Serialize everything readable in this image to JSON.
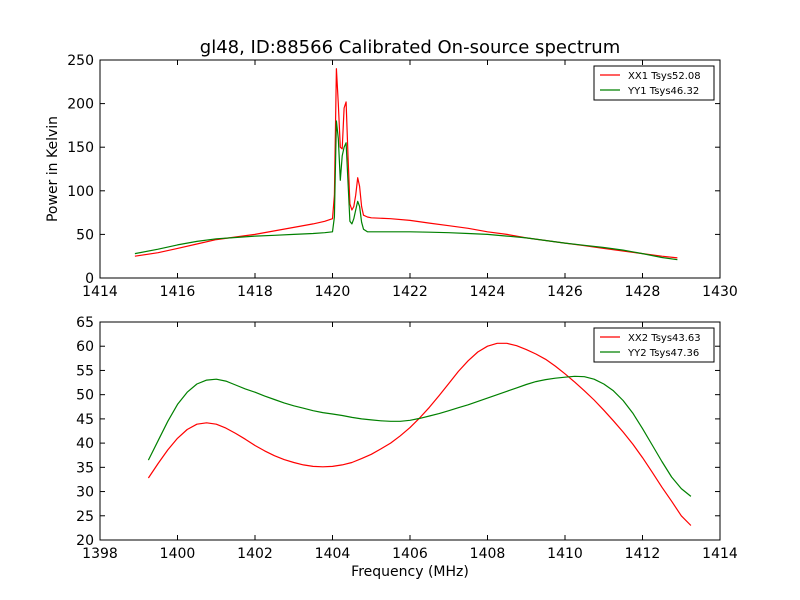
{
  "figure": {
    "title": "gl48, ID:88566 Calibrated On-source spectrum"
  },
  "chart_data": [
    {
      "type": "line",
      "title": "gl48, ID:88566 Calibrated On-source spectrum",
      "xlabel": "",
      "ylabel": "Power in Kelvin",
      "xlim": [
        1414,
        1430
      ],
      "ylim": [
        0,
        250
      ],
      "xticks": [
        1414,
        1416,
        1418,
        1420,
        1422,
        1424,
        1426,
        1428,
        1430
      ],
      "yticks": [
        0,
        50,
        100,
        150,
        200,
        250
      ],
      "grid": false,
      "legend_position": "top-right",
      "series": [
        {
          "name": "XX1 Tsys52.08",
          "color": "#ff0000",
          "x": [
            1414.9,
            1415.5,
            1416.0,
            1416.5,
            1417.0,
            1417.5,
            1418.0,
            1418.5,
            1419.0,
            1419.5,
            1419.8,
            1420.0,
            1420.05,
            1420.1,
            1420.15,
            1420.2,
            1420.25,
            1420.3,
            1420.35,
            1420.4,
            1420.45,
            1420.5,
            1420.55,
            1420.6,
            1420.65,
            1420.7,
            1420.75,
            1420.8,
            1420.9,
            1421.0,
            1421.5,
            1422.0,
            1422.5,
            1423.0,
            1423.5,
            1424.0,
            1424.5,
            1425.0,
            1425.5,
            1426.0,
            1426.5,
            1427.0,
            1427.5,
            1428.0,
            1428.5,
            1428.9
          ],
          "values": [
            25,
            29,
            34,
            39,
            44,
            47,
            50,
            54,
            58,
            62,
            65,
            68,
            95,
            240,
            200,
            150,
            148,
            195,
            202,
            140,
            85,
            78,
            82,
            95,
            115,
            105,
            82,
            72,
            70,
            69,
            68,
            66,
            63,
            60,
            57,
            53,
            50,
            46,
            43,
            40,
            37,
            34,
            31,
            28,
            25,
            23
          ]
        },
        {
          "name": "YY1 Tsys46.32",
          "color": "#008000",
          "x": [
            1414.9,
            1415.5,
            1416.0,
            1416.5,
            1417.0,
            1417.5,
            1418.0,
            1418.5,
            1419.0,
            1419.5,
            1419.8,
            1420.0,
            1420.05,
            1420.1,
            1420.15,
            1420.2,
            1420.25,
            1420.3,
            1420.35,
            1420.4,
            1420.45,
            1420.5,
            1420.55,
            1420.6,
            1420.65,
            1420.7,
            1420.75,
            1420.8,
            1420.9,
            1421.0,
            1421.5,
            1422.0,
            1422.5,
            1423.0,
            1423.5,
            1424.0,
            1424.5,
            1425.0,
            1425.5,
            1426.0,
            1426.5,
            1427.0,
            1427.5,
            1428.0,
            1428.5,
            1428.9
          ],
          "values": [
            28,
            33,
            38,
            42,
            45,
            46.5,
            48,
            49,
            50,
            51,
            52,
            53,
            70,
            180,
            160,
            112,
            140,
            150,
            155,
            110,
            65,
            62,
            68,
            78,
            88,
            82,
            64,
            56,
            53,
            53,
            53,
            53,
            52.5,
            52,
            51,
            50,
            48,
            46,
            43,
            40,
            37.5,
            35,
            32,
            28,
            23.5,
            21
          ]
        }
      ]
    },
    {
      "type": "line",
      "title": "",
      "xlabel": "Frequency (MHz)",
      "ylabel": "",
      "xlim": [
        1398,
        1414
      ],
      "ylim": [
        20,
        65
      ],
      "xticks": [
        1398,
        1400,
        1402,
        1404,
        1406,
        1408,
        1410,
        1412,
        1414
      ],
      "yticks": [
        20,
        25,
        30,
        35,
        40,
        45,
        50,
        55,
        60,
        65
      ],
      "grid": false,
      "legend_position": "top-right",
      "series": [
        {
          "name": "XX2 Tsys43.63",
          "color": "#ff0000",
          "x": [
            1399.25,
            1399.5,
            1399.75,
            1400.0,
            1400.25,
            1400.5,
            1400.75,
            1401.0,
            1401.25,
            1401.5,
            1401.75,
            1402.0,
            1402.25,
            1402.5,
            1402.75,
            1403.0,
            1403.25,
            1403.5,
            1403.75,
            1404.0,
            1404.25,
            1404.5,
            1404.75,
            1405.0,
            1405.25,
            1405.5,
            1405.75,
            1406.0,
            1406.25,
            1406.5,
            1406.75,
            1407.0,
            1407.25,
            1407.5,
            1407.75,
            1408.0,
            1408.25,
            1408.5,
            1408.75,
            1409.0,
            1409.25,
            1409.5,
            1409.75,
            1410.0,
            1410.25,
            1410.5,
            1410.75,
            1411.0,
            1411.25,
            1411.5,
            1411.75,
            1412.0,
            1412.25,
            1412.5,
            1412.75,
            1413.0,
            1413.25
          ],
          "values": [
            32.8,
            35.8,
            38.6,
            41.0,
            42.8,
            43.9,
            44.2,
            43.9,
            43.1,
            42.0,
            40.8,
            39.5,
            38.4,
            37.4,
            36.6,
            36.0,
            35.5,
            35.2,
            35.1,
            35.2,
            35.5,
            36.0,
            36.8,
            37.7,
            38.8,
            40.0,
            41.5,
            43.2,
            45.2,
            47.4,
            49.8,
            52.3,
            54.8,
            57.0,
            58.8,
            60.0,
            60.6,
            60.6,
            60.1,
            59.3,
            58.4,
            57.3,
            55.9,
            54.3,
            52.6,
            50.8,
            48.9,
            46.8,
            44.6,
            42.3,
            39.8,
            37.0,
            34.0,
            30.9,
            28.0,
            25.0,
            23.0
          ]
        },
        {
          "name": "YY2 Tsys47.36",
          "color": "#008000",
          "x": [
            1399.25,
            1399.5,
            1399.75,
            1400.0,
            1400.25,
            1400.5,
            1400.75,
            1401.0,
            1401.25,
            1401.5,
            1401.75,
            1402.0,
            1402.25,
            1402.5,
            1402.75,
            1403.0,
            1403.25,
            1403.5,
            1403.75,
            1404.0,
            1404.25,
            1404.5,
            1404.75,
            1405.0,
            1405.25,
            1405.5,
            1405.75,
            1406.0,
            1406.25,
            1406.5,
            1406.75,
            1407.0,
            1407.25,
            1407.5,
            1407.75,
            1408.0,
            1408.25,
            1408.5,
            1408.75,
            1409.0,
            1409.25,
            1409.5,
            1409.75,
            1410.0,
            1410.25,
            1410.5,
            1410.75,
            1411.0,
            1411.25,
            1411.5,
            1411.75,
            1412.0,
            1412.25,
            1412.5,
            1412.75,
            1413.0,
            1413.25
          ],
          "values": [
            36.5,
            40.5,
            44.5,
            48.0,
            50.5,
            52.2,
            53.0,
            53.2,
            52.8,
            52.0,
            51.2,
            50.5,
            49.7,
            49.0,
            48.3,
            47.7,
            47.2,
            46.7,
            46.3,
            46.0,
            45.7,
            45.3,
            45.0,
            44.8,
            44.6,
            44.5,
            44.5,
            44.7,
            45.1,
            45.6,
            46.1,
            46.7,
            47.3,
            47.9,
            48.6,
            49.3,
            50.0,
            50.7,
            51.4,
            52.1,
            52.7,
            53.1,
            53.4,
            53.6,
            53.8,
            53.7,
            53.2,
            52.2,
            50.8,
            48.8,
            46.2,
            43.0,
            39.6,
            36.2,
            33.0,
            30.6,
            29.0
          ]
        }
      ]
    }
  ]
}
